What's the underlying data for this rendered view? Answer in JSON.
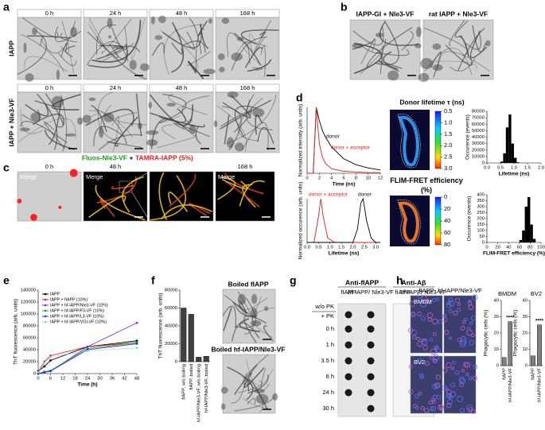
{
  "panel_a": {
    "label": "a",
    "timepoints": [
      "0 h",
      "24 h",
      "48 h",
      "168 h"
    ],
    "rows": [
      "IAPP",
      "IAPP + Nle3-VF"
    ]
  },
  "panel_b": {
    "label": "b",
    "images": [
      "IAPP-GI + Nle3-VF",
      "rat IAPP + Nle3-VF"
    ]
  },
  "panel_c": {
    "label": "c",
    "title_green": "Fluos-Nle3-VF",
    "title_join": "+",
    "title_red": "TAMRA-IAPP (5%)",
    "timepoints": [
      "0 h",
      "48 h",
      "168 h"
    ],
    "image_label": "Merge"
  },
  "panel_d": {
    "label": "d",
    "lifetime_map_title": "Donor lifetime τ (ns)",
    "lifetime_scale": [
      0.5,
      {
        "value": 1.0,
        "label": "1.0"
      },
      1.5,
      {
        "value": 2.0,
        "label": "2.0"
      },
      2.5,
      {
        "value": 3.0,
        "label": "3.0"
      }
    ],
    "fret_map_title": "FLIM-FRET efficiency (%)",
    "fret_scale": [
      0,
      20,
      40,
      60,
      80
    ]
  },
  "panel_e": {
    "label": "e"
  },
  "panel_f": {
    "label": "f",
    "images": [
      "Boiled fIAPP",
      "Boiled hf-IAPP/Nle3-VF"
    ]
  },
  "panel_g": {
    "label": "g",
    "blots": [
      "Anti-fIAPP",
      "Anti-Aβ"
    ],
    "lanes": [
      "fIAPP",
      "hf-IAPP/ Nle3-VF"
    ],
    "conditions": [
      "w/o PK",
      "+ PK"
    ],
    "timepoints": [
      "0 h",
      "1 h",
      "3.5 h",
      "6 h",
      "24 h",
      "30 h"
    ]
  },
  "panel_h": {
    "label": "h",
    "columns": [
      "fIAPP",
      "hf-IAPP/Nle3-VF"
    ],
    "rows": [
      "BMDM",
      "BV2"
    ]
  },
  "chart_data": [
    {
      "type": "line",
      "xlabel": "Time (ns)",
      "ylabel": "Normalized intensity (arb. units)",
      "x": [
        0,
        1,
        1.5,
        2,
        2.5,
        3,
        4,
        6,
        8,
        10,
        12
      ],
      "xlim": [
        0,
        12
      ],
      "xticks": [
        0,
        2,
        4,
        6,
        8,
        10,
        12
      ],
      "ylim": [
        0,
        1
      ],
      "series": [
        {
          "name": "donor",
          "color": "#000000",
          "values": [
            0,
            0,
            1,
            0.8,
            0.65,
            0.55,
            0.4,
            0.22,
            0.13,
            0.08,
            0.05
          ]
        },
        {
          "name": "donor + acceptor",
          "color": "#e02020",
          "values": [
            0,
            0,
            1,
            0.45,
            0.25,
            0.15,
            0.07,
            0.03,
            0.02,
            0.01,
            0.01
          ]
        }
      ]
    },
    {
      "type": "histogram",
      "xlabel": "Lifetime (ns)",
      "ylabel": "Occurence (events)",
      "color": "#000000",
      "bins": [
        0.5,
        0.6,
        0.7,
        0.8,
        0.9,
        1.0,
        1.1,
        1.2
      ],
      "counts": [
        2000,
        15000,
        55000,
        75000,
        30000,
        8000,
        1000
      ],
      "xlim": [
        0,
        2
      ],
      "xticks": [
        {
          "value": 0,
          "label": "0.0"
        },
        0.5,
        {
          "value": 1,
          "label": "1.0"
        },
        1.5,
        {
          "value": 2,
          "label": "2.0"
        }
      ],
      "ylim": [
        0,
        80000
      ],
      "yticks": [
        0,
        10000,
        20000,
        30000,
        40000,
        50000,
        60000,
        70000,
        80000
      ]
    },
    {
      "type": "line",
      "xlabel": "Lifetime (ns)",
      "ylabel": "Normalized occurence (arb. units)",
      "x": [
        0,
        0.3,
        0.5,
        0.6,
        0.7,
        0.9,
        1.2,
        1.6,
        2.0,
        2.2,
        2.35,
        2.45,
        2.6,
        2.8,
        3.0,
        3.2
      ],
      "xlim": [
        0,
        3.2
      ],
      "xticks": [
        {
          "value": 0,
          "label": "0.0"
        },
        0.5,
        {
          "value": 1,
          "label": "1.0"
        },
        1.5,
        {
          "value": 2,
          "label": "2.0"
        },
        2.5,
        {
          "value": 3,
          "label": "3.0"
        }
      ],
      "ylim": [
        0,
        1
      ],
      "series": [
        {
          "name": "donor + acceptor",
          "color": "#e02020",
          "values": [
            0,
            0,
            0.6,
            1,
            0.6,
            0.1,
            0,
            0,
            0,
            0,
            0,
            0,
            0,
            0,
            0,
            0
          ]
        },
        {
          "name": "donor",
          "color": "#000000",
          "values": [
            0,
            0,
            0,
            0,
            0,
            0,
            0,
            0,
            0,
            0.3,
            0.9,
            1,
            0.5,
            0.1,
            0,
            0
          ]
        }
      ]
    },
    {
      "type": "histogram",
      "xlabel": "FLIM-FRET efficiency (%)",
      "ylabel": "Occurence (events)",
      "color": "#000000",
      "bins": [
        60,
        65,
        70,
        75,
        80,
        85,
        90
      ],
      "counts": [
        20,
        100,
        300,
        380,
        150,
        30
      ],
      "xlim": [
        0,
        100
      ],
      "xticks": [
        0,
        20,
        40,
        60,
        80,
        100
      ],
      "ylim": [
        0,
        400
      ],
      "yticks": [
        0,
        50,
        100,
        150,
        200,
        250,
        300,
        350,
        400
      ]
    },
    {
      "type": "line",
      "xlabel": "Time (h)",
      "ylabel": "ThT fluorescence (arb. units)",
      "x": [
        0,
        3,
        6,
        24,
        48
      ],
      "xlim": [
        0,
        48
      ],
      "xticks": [
        0,
        6,
        12,
        18,
        24,
        30,
        36,
        42,
        48
      ],
      "ylim": [
        0,
        140000
      ],
      "yticks": [
        0,
        20000,
        40000,
        60000,
        80000,
        100000,
        120000,
        140000
      ],
      "series": [
        {
          "name": "IAPP",
          "color": "#000000",
          "values": [
            4000,
            12000,
            22000,
            45000,
            55000
          ]
        },
        {
          "name": "IAPP + fIAPP (10%)",
          "color": "#e02020",
          "values": [
            3000,
            20000,
            30000,
            45000,
            52000
          ]
        },
        {
          "name": "IAPP + hf-IAPP/Nle3-VF (10%)",
          "color": "#8a2be2",
          "values": [
            0,
            2000,
            4000,
            45000,
            85000
          ]
        },
        {
          "name": "IAPP + hf-IAPP/F3-VF (10%)",
          "color": "#20a020",
          "values": [
            0,
            3000,
            5000,
            42000,
            52000
          ]
        },
        {
          "name": "IAPP + hf-IAPP/L3-VF (10%)",
          "color": "#1f3fd0",
          "values": [
            0,
            2000,
            4000,
            40000,
            50000
          ]
        },
        {
          "name": "IAPP + hf-IAPP/VGI-VF (10%)",
          "color": "#80c8e8",
          "dashed": true,
          "values": [
            2000,
            18000,
            28000,
            38000,
            43000
          ]
        }
      ]
    },
    {
      "type": "bar",
      "ylabel": "ThT fluorescence (arb. units)",
      "color": "#404040",
      "categories": [
        "fIAPP, w/o boiling",
        "fIAPP, boiled",
        "hf-IAPP/Nle3-VF, w/o boiling",
        "hf-IAPP/Nle3-VF, boiled"
      ],
      "values": [
        60000,
        53000,
        5000,
        6000
      ],
      "ylim": [
        0,
        80000
      ],
      "yticks": [
        0,
        20000,
        40000,
        60000,
        80000
      ]
    },
    {
      "type": "bar",
      "title": "BMDM",
      "ylabel": "Phagocytic cells (%)",
      "color": "#808080",
      "categories": [
        "fIAPP",
        "hf-IAPP/Nle3-VF"
      ],
      "values": [
        5,
        27
      ],
      "annotation": "****",
      "ylim": [
        0,
        40
      ],
      "yticks": [
        0,
        10,
        20,
        30,
        40
      ]
    },
    {
      "type": "bar",
      "title": "BV2",
      "ylabel": "Phagocytic cells (%)",
      "color": "#808080",
      "categories": [
        "fIAPP",
        "hf-IAPP/Nle3-VF"
      ],
      "values": [
        6,
        25
      ],
      "annotation": "****",
      "ylim": [
        0,
        40
      ],
      "yticks": [
        0,
        10,
        20,
        30,
        40
      ]
    }
  ]
}
